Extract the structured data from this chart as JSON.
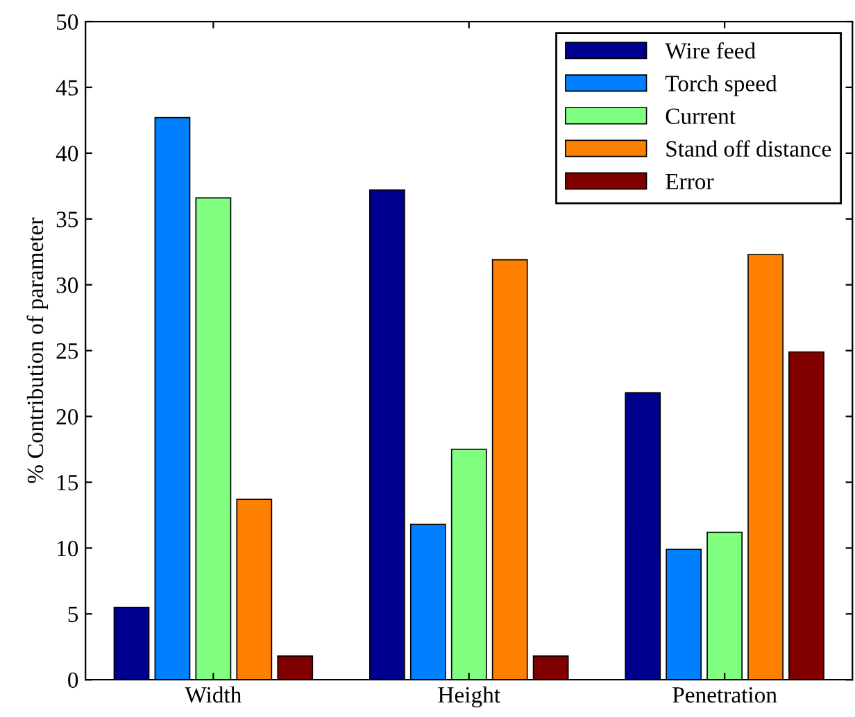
{
  "chart_data": {
    "type": "bar",
    "ylabel": "% Contribution of parameter",
    "categories": [
      "Width",
      "Height",
      "Penetration"
    ],
    "series": [
      {
        "name": "Wire feed",
        "color": "#00008f",
        "values": [
          5.5,
          37.2,
          21.8
        ]
      },
      {
        "name": "Torch speed",
        "color": "#0080ff",
        "values": [
          42.7,
          11.8,
          9.9
        ]
      },
      {
        "name": "Current",
        "color": "#80ff80",
        "values": [
          36.6,
          17.5,
          11.2
        ]
      },
      {
        "name": "Stand off distance",
        "color": "#ff8000",
        "values": [
          13.7,
          31.9,
          32.3
        ]
      },
      {
        "name": "Error",
        "color": "#800000",
        "values": [
          1.8,
          1.8,
          24.9
        ]
      }
    ],
    "ylim": [
      0,
      50
    ],
    "yticks": [
      0,
      5,
      10,
      15,
      20,
      25,
      30,
      35,
      40,
      45,
      50
    ],
    "grid": false,
    "legend": "top right"
  }
}
